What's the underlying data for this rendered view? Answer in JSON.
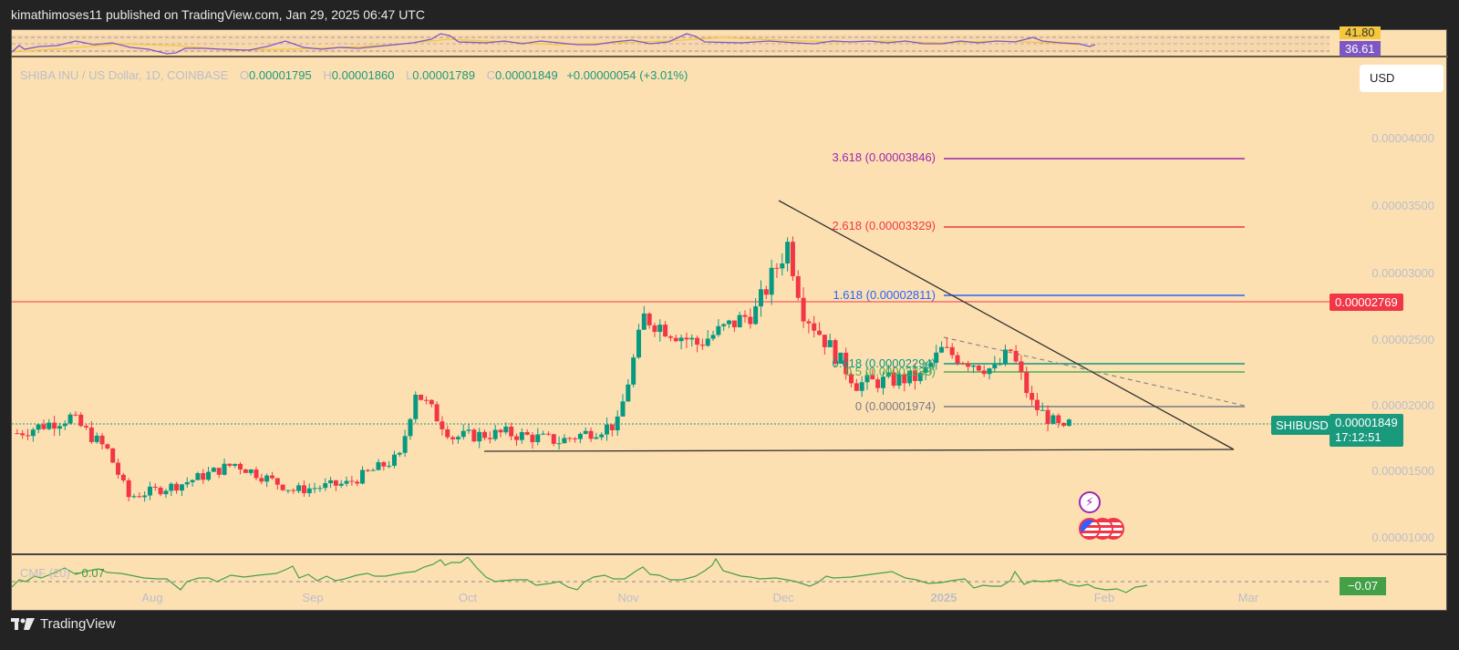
{
  "header": {
    "publisher_line": "kimathimoses11 published on TradingView.com, Jan 29, 2025 06:47 UTC"
  },
  "rsi": {
    "tag_upper": "41.80",
    "tag_lower": "36.61",
    "colors": {
      "rsi_line": "#7e57c2",
      "ma_line": "#f5c73b",
      "upper_tag": "#f5c73b",
      "lower_tag": "#7e57c2"
    }
  },
  "legend": {
    "symbol_desc": "SHIBA INU / US Dollar, 1D, COINBASE",
    "open_label": "O",
    "open": "0.00001795",
    "high_label": "H",
    "high": "0.00001860",
    "low_label": "L",
    "low": "0.00001789",
    "close_label": "C",
    "close": "0.00001849",
    "change": "+0.00000054 (+3.01%)"
  },
  "currency_button": "USD",
  "price_axis": [
    "0.00004000",
    "0.00003500",
    "0.00003000",
    "0.00002500",
    "0.00002000",
    "0.00001500",
    "0.00001000"
  ],
  "horizontal_line": {
    "price": "0.00002769",
    "color": "#f23645"
  },
  "last_price": {
    "symbol": "SHIBUSD",
    "price": "0.00001849",
    "countdown": "17:12:51",
    "color": "#1a9a7d"
  },
  "fib_levels": [
    {
      "label": "3.618 (0.00003846)",
      "color": "#9c27b0"
    },
    {
      "label": "2.618 (0.00003329)",
      "color": "#f23645"
    },
    {
      "label": "1.618 (0.00002811)",
      "color": "#2962ff"
    },
    {
      "label": "0.618 (0.00002294)",
      "color": "#089981"
    },
    {
      "label": "0.5 (0.00002233)",
      "color": "#4caf50"
    },
    {
      "label": "0 (0.00001974)",
      "color": "#787b86"
    }
  ],
  "x_axis": [
    {
      "label": "Aug",
      "bold": false
    },
    {
      "label": "Sep",
      "bold": false
    },
    {
      "label": "Oct",
      "bold": false
    },
    {
      "label": "Nov",
      "bold": false
    },
    {
      "label": "Dec",
      "bold": false
    },
    {
      "label": "2025",
      "bold": true
    },
    {
      "label": "Feb",
      "bold": false
    },
    {
      "label": "Mar",
      "bold": false
    }
  ],
  "cmf": {
    "name": "CMF (20)",
    "value": "−0.07",
    "tag": "−0.07",
    "color": "#43a047"
  },
  "events": [
    {
      "icon": "lightning-event-icon"
    },
    {
      "icon": "us-flag-event-icon"
    }
  ],
  "footer": {
    "brand": "TradingView"
  },
  "chart_data": {
    "type": "candlestick",
    "title": "SHIBA INU / US Dollar, 1D, COINBASE",
    "ohlc_last": {
      "open": 1.795e-05,
      "high": 1.86e-05,
      "low": 1.789e-05,
      "close": 1.849e-05,
      "change": 5.4e-07,
      "change_pct": 3.01
    },
    "x_ticks": [
      "Aug",
      "Sep",
      "Oct",
      "Nov",
      "Dec",
      "2025",
      "Feb",
      "Mar"
    ],
    "y_ticks": [
      4e-05,
      3.5e-05,
      3e-05,
      2.5e-05,
      2e-05,
      1.5e-05,
      1e-05
    ],
    "ylim": [
      9.5e-06,
      4.25e-05
    ],
    "approx_close_series": [
      {
        "date": "2024-07-15",
        "close": 1.78e-05
      },
      {
        "date": "2024-07-25",
        "close": 1.9e-05
      },
      {
        "date": "2024-08-01",
        "close": 1.65e-05
      },
      {
        "date": "2024-08-05",
        "close": 1.3e-05
      },
      {
        "date": "2024-08-15",
        "close": 1.4e-05
      },
      {
        "date": "2024-08-25",
        "close": 1.55e-05
      },
      {
        "date": "2024-09-05",
        "close": 1.35e-05
      },
      {
        "date": "2024-09-15",
        "close": 1.4e-05
      },
      {
        "date": "2024-09-25",
        "close": 1.6e-05
      },
      {
        "date": "2024-09-28",
        "close": 2.1e-05
      },
      {
        "date": "2024-10-05",
        "close": 1.75e-05
      },
      {
        "date": "2024-10-15",
        "close": 1.78e-05
      },
      {
        "date": "2024-10-25",
        "close": 1.72e-05
      },
      {
        "date": "2024-11-05",
        "close": 1.85e-05
      },
      {
        "date": "2024-11-10",
        "close": 2.65e-05
      },
      {
        "date": "2024-11-20",
        "close": 2.45e-05
      },
      {
        "date": "2024-12-01",
        "close": 2.7e-05
      },
      {
        "date": "2024-12-07",
        "close": 3.2e-05
      },
      {
        "date": "2024-12-10",
        "close": 2.7e-05
      },
      {
        "date": "2024-12-20",
        "close": 2.15e-05
      },
      {
        "date": "2025-01-01",
        "close": 2.2e-05
      },
      {
        "date": "2025-01-05",
        "close": 2.4e-05
      },
      {
        "date": "2025-01-15",
        "close": 2.25e-05
      },
      {
        "date": "2025-01-18",
        "close": 2.4e-05
      },
      {
        "date": "2025-01-22",
        "close": 2e-05
      },
      {
        "date": "2025-01-28",
        "close": 1.79e-05
      },
      {
        "date": "2025-01-29",
        "close": 1.849e-05
      }
    ],
    "fibonacci_extension": [
      {
        "ratio": 3.618,
        "price": 3.846e-05
      },
      {
        "ratio": 2.618,
        "price": 3.329e-05
      },
      {
        "ratio": 1.618,
        "price": 2.811e-05
      },
      {
        "ratio": 0.618,
        "price": 2.294e-05
      },
      {
        "ratio": 0.5,
        "price": 2.233e-05
      },
      {
        "ratio": 0,
        "price": 1.974e-05
      }
    ],
    "horizontal_levels": [
      2.769e-05
    ],
    "trendlines": [
      {
        "name": "descending resistance",
        "from": {
          "date": "2024-12-01",
          "price": 3.52e-05
        },
        "to": {
          "date": "2025-02-28",
          "price": 1.67e-05
        }
      },
      {
        "name": "flat support",
        "from": {
          "date": "2024-10-03",
          "price": 1.66e-05
        },
        "to": {
          "date": "2025-02-28",
          "price": 1.67e-05
        }
      }
    ],
    "indicators": [
      {
        "name": "RSI",
        "values_shown": {
          "rsi": 36.61,
          "ma": 41.8
        }
      },
      {
        "name": "CMF (20)",
        "value": -0.07
      }
    ]
  }
}
